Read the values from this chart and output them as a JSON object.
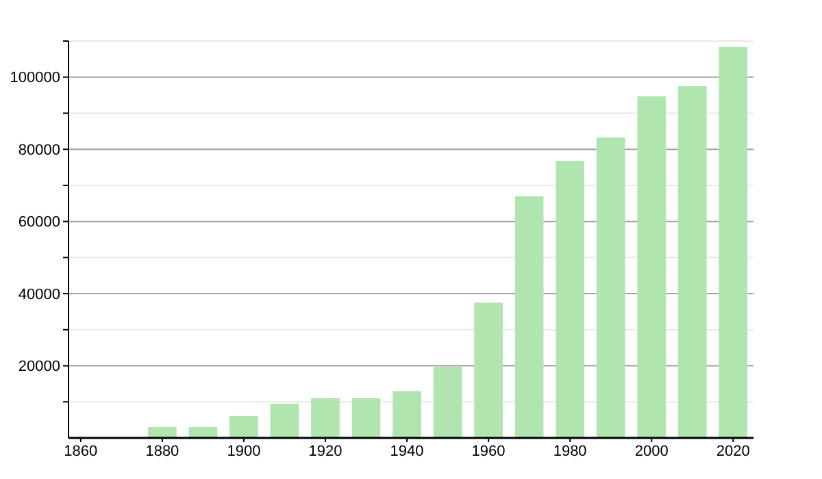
{
  "chart_data": {
    "type": "bar",
    "x": [
      1880,
      1890,
      1900,
      1910,
      1920,
      1930,
      1940,
      1950,
      1960,
      1970,
      1980,
      1990,
      2000,
      2010,
      2020
    ],
    "values": [
      3000,
      3000,
      6100,
      9500,
      11000,
      11000,
      13000,
      19700,
      37500,
      67000,
      76800,
      83300,
      94700,
      97500,
      108400
    ],
    "color": "#b0e5b0",
    "xlim": [
      1857,
      2025
    ],
    "xticks": [
      1860,
      1880,
      1900,
      1920,
      1940,
      1960,
      1980,
      2000,
      2020
    ],
    "ylim": [
      0,
      110000
    ],
    "yticks": [
      {
        "value": 10000,
        "label": null
      },
      20000,
      {
        "value": 30000,
        "label": null
      },
      40000,
      {
        "value": 50000,
        "label": null
      },
      60000,
      {
        "value": 70000,
        "label": null
      },
      80000,
      {
        "value": 90000,
        "label": null
      },
      100000,
      {
        "value": 110000,
        "label": null
      }
    ],
    "grid": true
  }
}
